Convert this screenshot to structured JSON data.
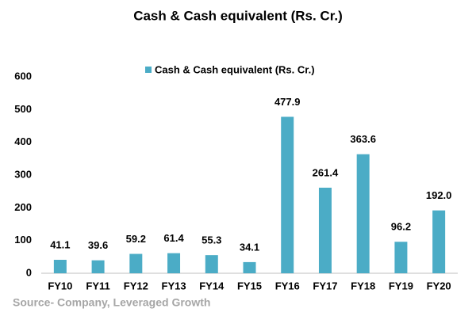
{
  "chart_data": {
    "type": "bar",
    "title": "Cash & Cash equivalent (Rs. Cr.)",
    "categories": [
      "FY10",
      "FY11",
      "FY12",
      "FY13",
      "FY14",
      "FY15",
      "FY16",
      "FY17",
      "FY18",
      "FY19",
      "FY20"
    ],
    "series": [
      {
        "name": "Cash & Cash equivalent (Rs. Cr.)",
        "color": "#4bacc6",
        "values": [
          41.1,
          39.6,
          59.2,
          61.4,
          55.3,
          34.1,
          477.9,
          261.4,
          363.6,
          96.2,
          192.0
        ],
        "value_labels": [
          "41.1",
          "39.6",
          "59.2",
          "61.4",
          "55.3",
          "34.1",
          "477.9",
          "261.4",
          "363.6",
          "96.2",
          "192.0"
        ]
      }
    ],
    "ylim": [
      0,
      600
    ],
    "yticks": [
      0,
      100,
      200,
      300,
      400,
      500,
      600
    ],
    "grid": false,
    "legend": "top",
    "source": "Source- Company, Leveraged Growth"
  }
}
